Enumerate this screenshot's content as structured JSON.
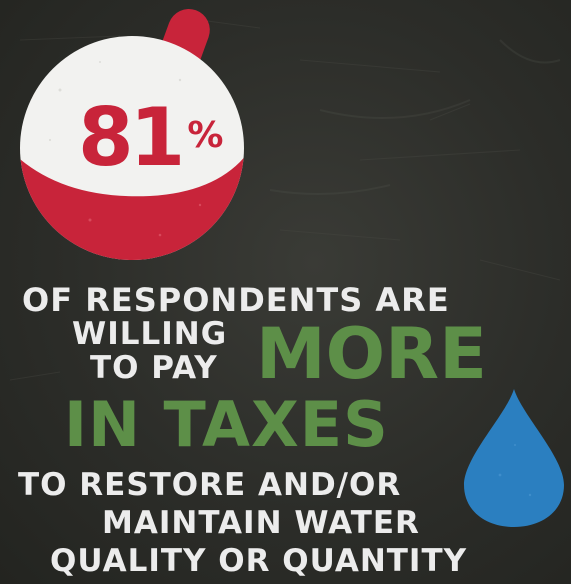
{
  "statistic": {
    "value": "81",
    "unit": "%"
  },
  "headline": {
    "line1": "OF RESPONDENTS ARE",
    "line2": "WILLING",
    "line3": "TO PAY",
    "emphasis1": "MORE",
    "emphasis2": "IN TAXES",
    "line5": "TO RESTORE AND/OR",
    "line6": "MAINTAIN WATER",
    "line7": "QUALITY OR QUANTITY"
  },
  "colors": {
    "background": "#2c2d29",
    "bobber_red": "#c8243a",
    "bobber_white": "#f2f2f0",
    "text_white": "#ececec",
    "text_green": "#5d8f48",
    "drop_blue": "#2b7fc0"
  },
  "icons": {
    "bobber": "fishing-bobber-icon",
    "drop": "water-drop-icon"
  }
}
